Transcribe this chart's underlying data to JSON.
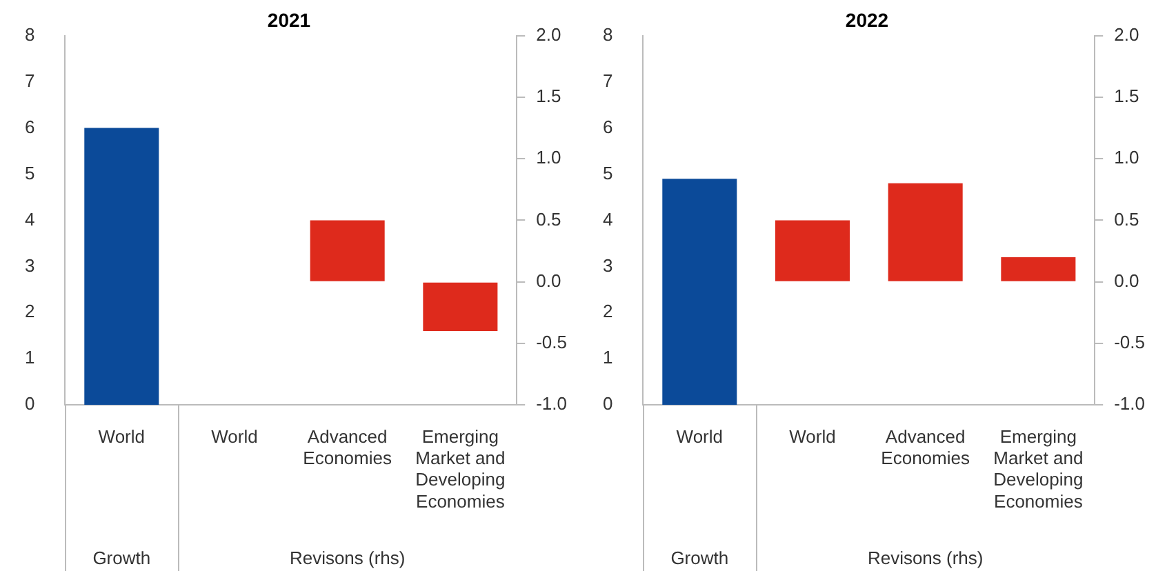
{
  "chart_data": [
    {
      "type": "bar",
      "title": "2021",
      "categories": [
        "World",
        "World",
        "Advanced Economies",
        "Emerging Market and Developing Economies"
      ],
      "series": [
        {
          "color": "#0b4a99",
          "values": [
            6.0,
            null,
            null,
            null
          ]
        },
        {
          "color": "#de2a1c",
          "axis": "y2",
          "values": [
            null,
            0.0,
            0.5,
            -0.4
          ]
        }
      ],
      "ylim": [
        0,
        8
      ],
      "yticks": [
        0,
        1,
        2,
        3,
        4,
        5,
        6,
        7,
        8
      ],
      "y2lim": [
        -1,
        2
      ],
      "y2ticks": [
        {
          "value": -1,
          "label": "-1.0"
        },
        {
          "value": -0.5,
          "label": "-0.5"
        },
        {
          "value": 0,
          "label": "0.0"
        },
        {
          "value": 0.5,
          "label": "0.5"
        },
        {
          "value": 1,
          "label": "1.0"
        },
        {
          "value": 1.5,
          "label": "1.5"
        },
        {
          "value": 2,
          "label": "2.0"
        }
      ],
      "annotations": [
        "Growth",
        "Revisons (rhs)"
      ]
    },
    {
      "type": "bar",
      "title": "2022",
      "categories": [
        "World",
        "World",
        "Advanced Economies",
        "Emerging Market and Developing Economies"
      ],
      "series": [
        {
          "color": "#0b4a99",
          "values": [
            4.9,
            null,
            null,
            null
          ]
        },
        {
          "color": "#de2a1c",
          "axis": "y2",
          "values": [
            null,
            0.5,
            0.8,
            0.2
          ]
        }
      ],
      "ylim": [
        0,
        8
      ],
      "yticks": [
        0,
        1,
        2,
        3,
        4,
        5,
        6,
        7,
        8
      ],
      "y2lim": [
        -1,
        2
      ],
      "y2ticks": [
        {
          "value": -1,
          "label": "-1.0"
        },
        {
          "value": -0.5,
          "label": "-0.5"
        },
        {
          "value": 0,
          "label": "0.0"
        },
        {
          "value": 0.5,
          "label": "0.5"
        },
        {
          "value": 1,
          "label": "1.0"
        },
        {
          "value": 1.5,
          "label": "1.5"
        },
        {
          "value": 2,
          "label": "2.0"
        }
      ],
      "annotations": [
        "Growth",
        "Revisons (rhs)"
      ]
    }
  ]
}
